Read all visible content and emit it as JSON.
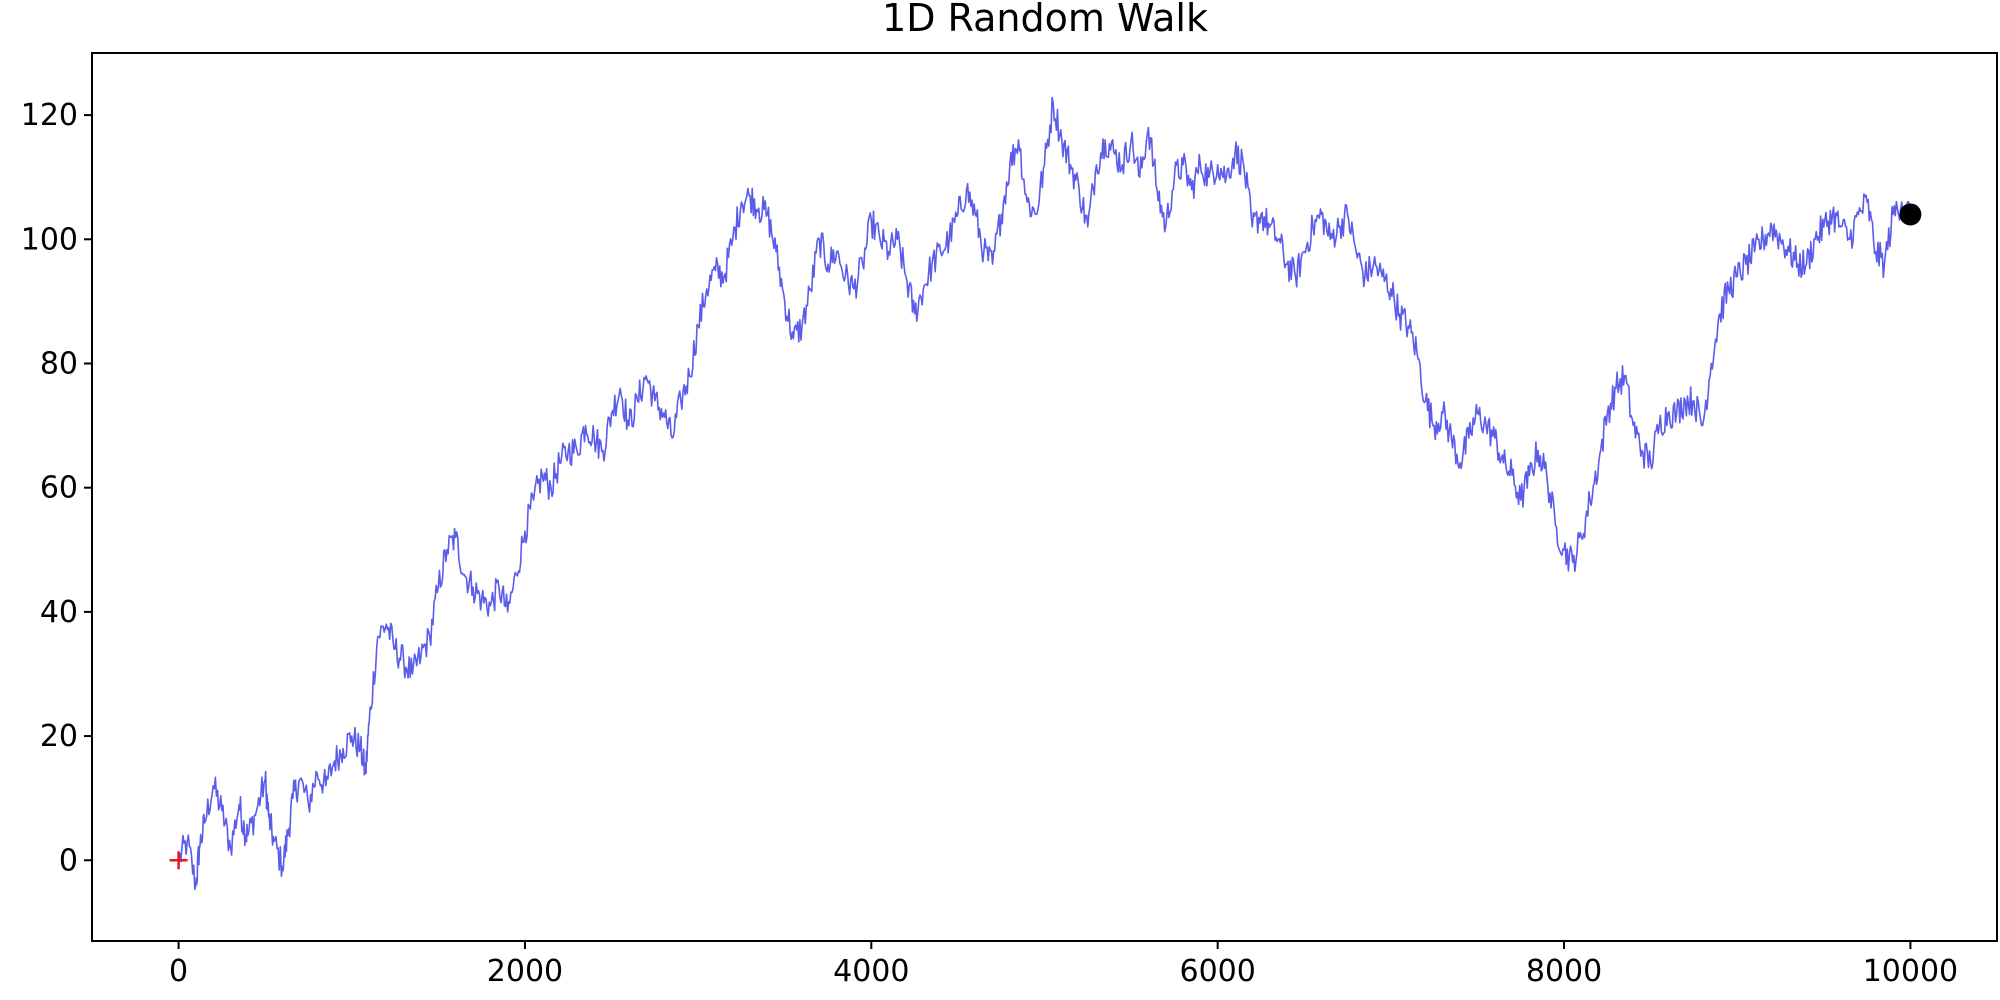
{
  "chart_data": {
    "type": "line",
    "title": "1D Random Walk",
    "xlabel": "",
    "ylabel": "",
    "xlim": [
      -500,
      10500
    ],
    "ylim": [
      -13,
      130
    ],
    "xticks": [
      0,
      2000,
      4000,
      6000,
      8000,
      10000
    ],
    "yticks": [
      0,
      20,
      40,
      60,
      80,
      100,
      120
    ],
    "xtick_labels": [
      "0",
      "2000",
      "4000",
      "6000",
      "8000",
      "10000"
    ],
    "ytick_labels": [
      "0",
      "20",
      "40",
      "60",
      "80",
      "100",
      "120"
    ],
    "grid": false,
    "legend": "none",
    "colors": {
      "line": "#3f3fe8",
      "start_marker": "#e31a1c",
      "end_marker": "#000000",
      "axes": "#000000"
    },
    "series": [
      {
        "x": [
          0,
          50,
          100,
          120,
          150,
          200,
          250,
          300,
          350,
          380,
          400,
          450,
          500,
          520,
          550,
          600,
          630,
          660,
          700,
          750,
          800,
          850,
          900,
          950,
          1000,
          1050,
          1080,
          1100,
          1150,
          1200,
          1250,
          1300,
          1350,
          1400,
          1450,
          1500,
          1550,
          1600,
          1650,
          1700,
          1750,
          1800,
          1850,
          1900,
          1950,
          2000,
          2050,
          2100,
          2150,
          2200,
          2250,
          2300,
          2350,
          2400,
          2450,
          2500,
          2550,
          2600,
          2650,
          2700,
          2750,
          2800,
          2850,
          2900,
          2950,
          3000,
          3050,
          3100,
          3150,
          3200,
          3250,
          3300,
          3350,
          3400,
          3450,
          3500,
          3550,
          3600,
          3650,
          3700,
          3750,
          3800,
          3850,
          3900,
          3950,
          4000,
          4050,
          4100,
          4150,
          4200,
          4250,
          4300,
          4350,
          4400,
          4450,
          4500,
          4550,
          4600,
          4650,
          4700,
          4750,
          4800,
          4850,
          4900,
          4950,
          5000,
          5050,
          5100,
          5150,
          5200,
          5250,
          5300,
          5350,
          5400,
          5450,
          5500,
          5550,
          5600,
          5650,
          5700,
          5750,
          5800,
          5850,
          5900,
          5950,
          6000,
          6050,
          6100,
          6150,
          6200,
          6250,
          6300,
          6350,
          6400,
          6450,
          6500,
          6550,
          6600,
          6650,
          6700,
          6750,
          6800,
          6850,
          6900,
          6950,
          7000,
          7050,
          7100,
          7150,
          7200,
          7250,
          7300,
          7350,
          7400,
          7450,
          7500,
          7550,
          7600,
          7650,
          7700,
          7750,
          7800,
          7850,
          7900,
          7950,
          8000,
          8050,
          8100,
          8150,
          8200,
          8250,
          8300,
          8350,
          8400,
          8450,
          8500,
          8550,
          8600,
          8650,
          8700,
          8750,
          8800,
          8850,
          8900,
          8950,
          9000,
          9050,
          9100,
          9150,
          9200,
          9250,
          9300,
          9350,
          9400,
          9450,
          9500,
          9550,
          9600,
          9650,
          9700,
          9750,
          9800,
          9850,
          9900,
          9950,
          10000
        ],
        "y": [
          0,
          3,
          -4,
          2,
          6,
          12,
          8,
          2,
          9,
          5,
          4,
          8,
          13,
          7,
          3,
          -1,
          4,
          10,
          13,
          9,
          14,
          12,
          16,
          18,
          20,
          18,
          14,
          22,
          36,
          38,
          34,
          32,
          30,
          33,
          36,
          44,
          50,
          52,
          46,
          44,
          42,
          41,
          44,
          40,
          46,
          53,
          58,
          62,
          60,
          64,
          66,
          66,
          70,
          68,
          66,
          72,
          76,
          70,
          74,
          78,
          74,
          72,
          68,
          74,
          78,
          86,
          92,
          95,
          94,
          100,
          106,
          107,
          105,
          104,
          98,
          90,
          84,
          86,
          92,
          100,
          96,
          98,
          94,
          92,
          96,
          103,
          100,
          98,
          100,
          94,
          88,
          92,
          96,
          98,
          100,
          104,
          108,
          104,
          98,
          96,
          104,
          112,
          116,
          106,
          104,
          112,
          122,
          116,
          112,
          108,
          102,
          112,
          116,
          114,
          112,
          116,
          110,
          118,
          108,
          102,
          110,
          112,
          108,
          112,
          110,
          112,
          110,
          114,
          112,
          102,
          104,
          102,
          100,
          96,
          94,
          98,
          102,
          104,
          100,
          102,
          104,
          98,
          94,
          96,
          94,
          92,
          88,
          86,
          82,
          74,
          70,
          72,
          68,
          64,
          68,
          72,
          70,
          68,
          64,
          62,
          58,
          62,
          66,
          62,
          54,
          50,
          48,
          52,
          58,
          64,
          72,
          76,
          78,
          70,
          66,
          64,
          70,
          72,
          72,
          74,
          74,
          70,
          80,
          88,
          92,
          94,
          96,
          98,
          100,
          102,
          100,
          98,
          96,
          96,
          100,
          102,
          104,
          102,
          100,
          104,
          106,
          98,
          96,
          104,
          106,
          104
        ]
      }
    ],
    "markers": [
      {
        "x": 0,
        "y": 0,
        "shape": "plus"
      },
      {
        "x": 10000,
        "y": 104,
        "shape": "circle"
      }
    ]
  }
}
